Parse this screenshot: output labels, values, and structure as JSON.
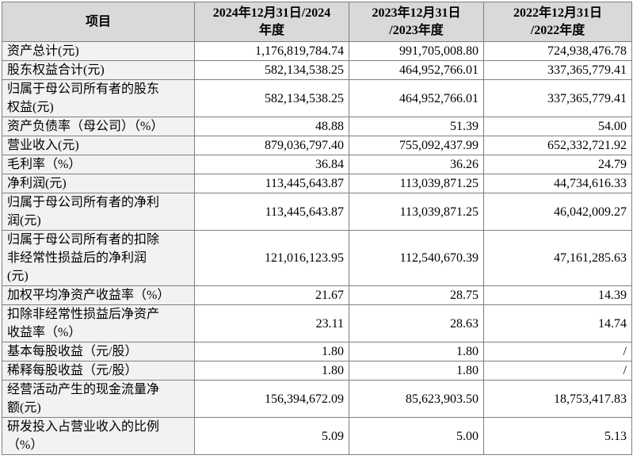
{
  "table": {
    "header": [
      [
        "项目"
      ],
      [
        "2024年12月31日/2024",
        "年度"
      ],
      [
        "2023年12月31日",
        "/2023年度"
      ],
      [
        "2022年12月31日",
        "/2022年度"
      ]
    ],
    "rows": [
      {
        "label": [
          "资产总计(元)"
        ],
        "values": [
          "1,176,819,784.74",
          "991,705,008.80",
          "724,938,476.78"
        ]
      },
      {
        "label": [
          "股东权益合计(元)"
        ],
        "values": [
          "582,134,538.25",
          "464,952,766.01",
          "337,365,779.41"
        ]
      },
      {
        "label": [
          "归属于母公司所有者的股东",
          "权益(元)"
        ],
        "values": [
          "582,134,538.25",
          "464,952,766.01",
          "337,365,779.41"
        ]
      },
      {
        "label": [
          "资产负债率（母公司）（%）"
        ],
        "values": [
          "48.88",
          "51.39",
          "54.00"
        ]
      },
      {
        "label": [
          "营业收入(元)"
        ],
        "values": [
          "879,036,797.40",
          "755,092,437.99",
          "652,332,721.92"
        ]
      },
      {
        "label": [
          "毛利率（%）"
        ],
        "values": [
          "36.84",
          "36.26",
          "24.79"
        ]
      },
      {
        "label": [
          "净利润(元)"
        ],
        "values": [
          "113,445,643.87",
          "113,039,871.25",
          "44,734,616.33"
        ]
      },
      {
        "label": [
          "归属于母公司所有者的净利",
          "润(元)"
        ],
        "values": [
          "113,445,643.87",
          "113,039,871.25",
          "46,042,009.27"
        ]
      },
      {
        "label": [
          "归属于母公司所有者的扣除",
          "非经常性损益后的净利润",
          "(元)"
        ],
        "values": [
          "121,016,123.95",
          "112,540,670.39",
          "47,161,285.63"
        ]
      },
      {
        "label": [
          "加权平均净资产收益率（%）"
        ],
        "values": [
          "21.67",
          "28.75",
          "14.39"
        ]
      },
      {
        "label": [
          "扣除非经常性损益后净资产",
          "收益率（%）"
        ],
        "values": [
          "23.11",
          "28.63",
          "14.74"
        ]
      },
      {
        "label": [
          "基本每股收益（元/股）"
        ],
        "values": [
          "1.80",
          "1.80",
          "/"
        ]
      },
      {
        "label": [
          "稀释每股收益（元/股）"
        ],
        "values": [
          "1.80",
          "1.80",
          "/"
        ]
      },
      {
        "label": [
          "经营活动产生的现金流量净",
          "额(元)"
        ],
        "values": [
          "156,394,672.09",
          "85,623,903.50",
          "18,753,417.83"
        ]
      },
      {
        "label": [
          "研发投入占营业收入的比例",
          "（%）"
        ],
        "values": [
          "5.09",
          "5.00",
          "5.13"
        ]
      }
    ]
  }
}
